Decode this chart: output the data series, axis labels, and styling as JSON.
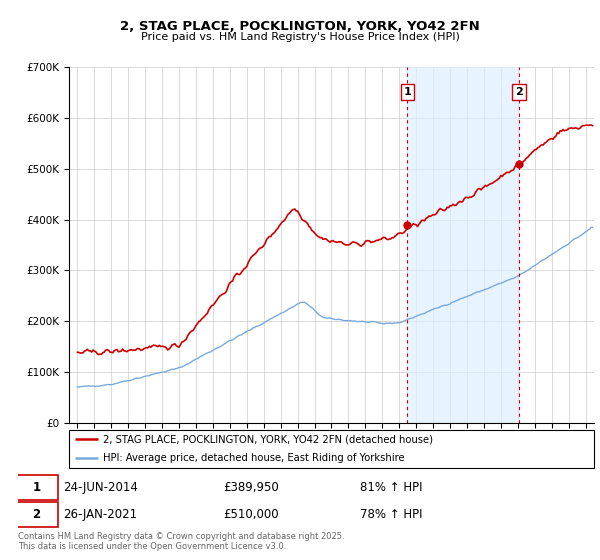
{
  "title_line1": "2, STAG PLACE, POCKLINGTON, YORK, YO42 2FN",
  "title_line2": "Price paid vs. HM Land Registry's House Price Index (HPI)",
  "legend_line1": "2, STAG PLACE, POCKLINGTON, YORK, YO42 2FN (detached house)",
  "legend_line2": "HPI: Average price, detached house, East Riding of Yorkshire",
  "footnote": "Contains HM Land Registry data © Crown copyright and database right 2025.\nThis data is licensed under the Open Government Licence v3.0.",
  "sale1_date": "24-JUN-2014",
  "sale1_price": "£389,950",
  "sale1_hpi": "81% ↑ HPI",
  "sale2_date": "26-JAN-2021",
  "sale2_price": "£510,000",
  "sale2_hpi": "78% ↑ HPI",
  "vline1_x": 2014.48,
  "vline2_x": 2021.07,
  "marker1_red_y": 389950,
  "marker2_red_y": 510000,
  "red_color": "#cc0000",
  "blue_color": "#7aaadd",
  "shade_color": "#ddeeff",
  "vline_color": "#cc0000",
  "bg_color": "#ffffff",
  "grid_color": "#cccccc",
  "ylim_min": 0,
  "ylim_max": 700000,
  "xlim_min": 1994.5,
  "xlim_max": 2025.5,
  "yticks": [
    0,
    100000,
    200000,
    300000,
    400000,
    500000,
    600000,
    700000
  ]
}
